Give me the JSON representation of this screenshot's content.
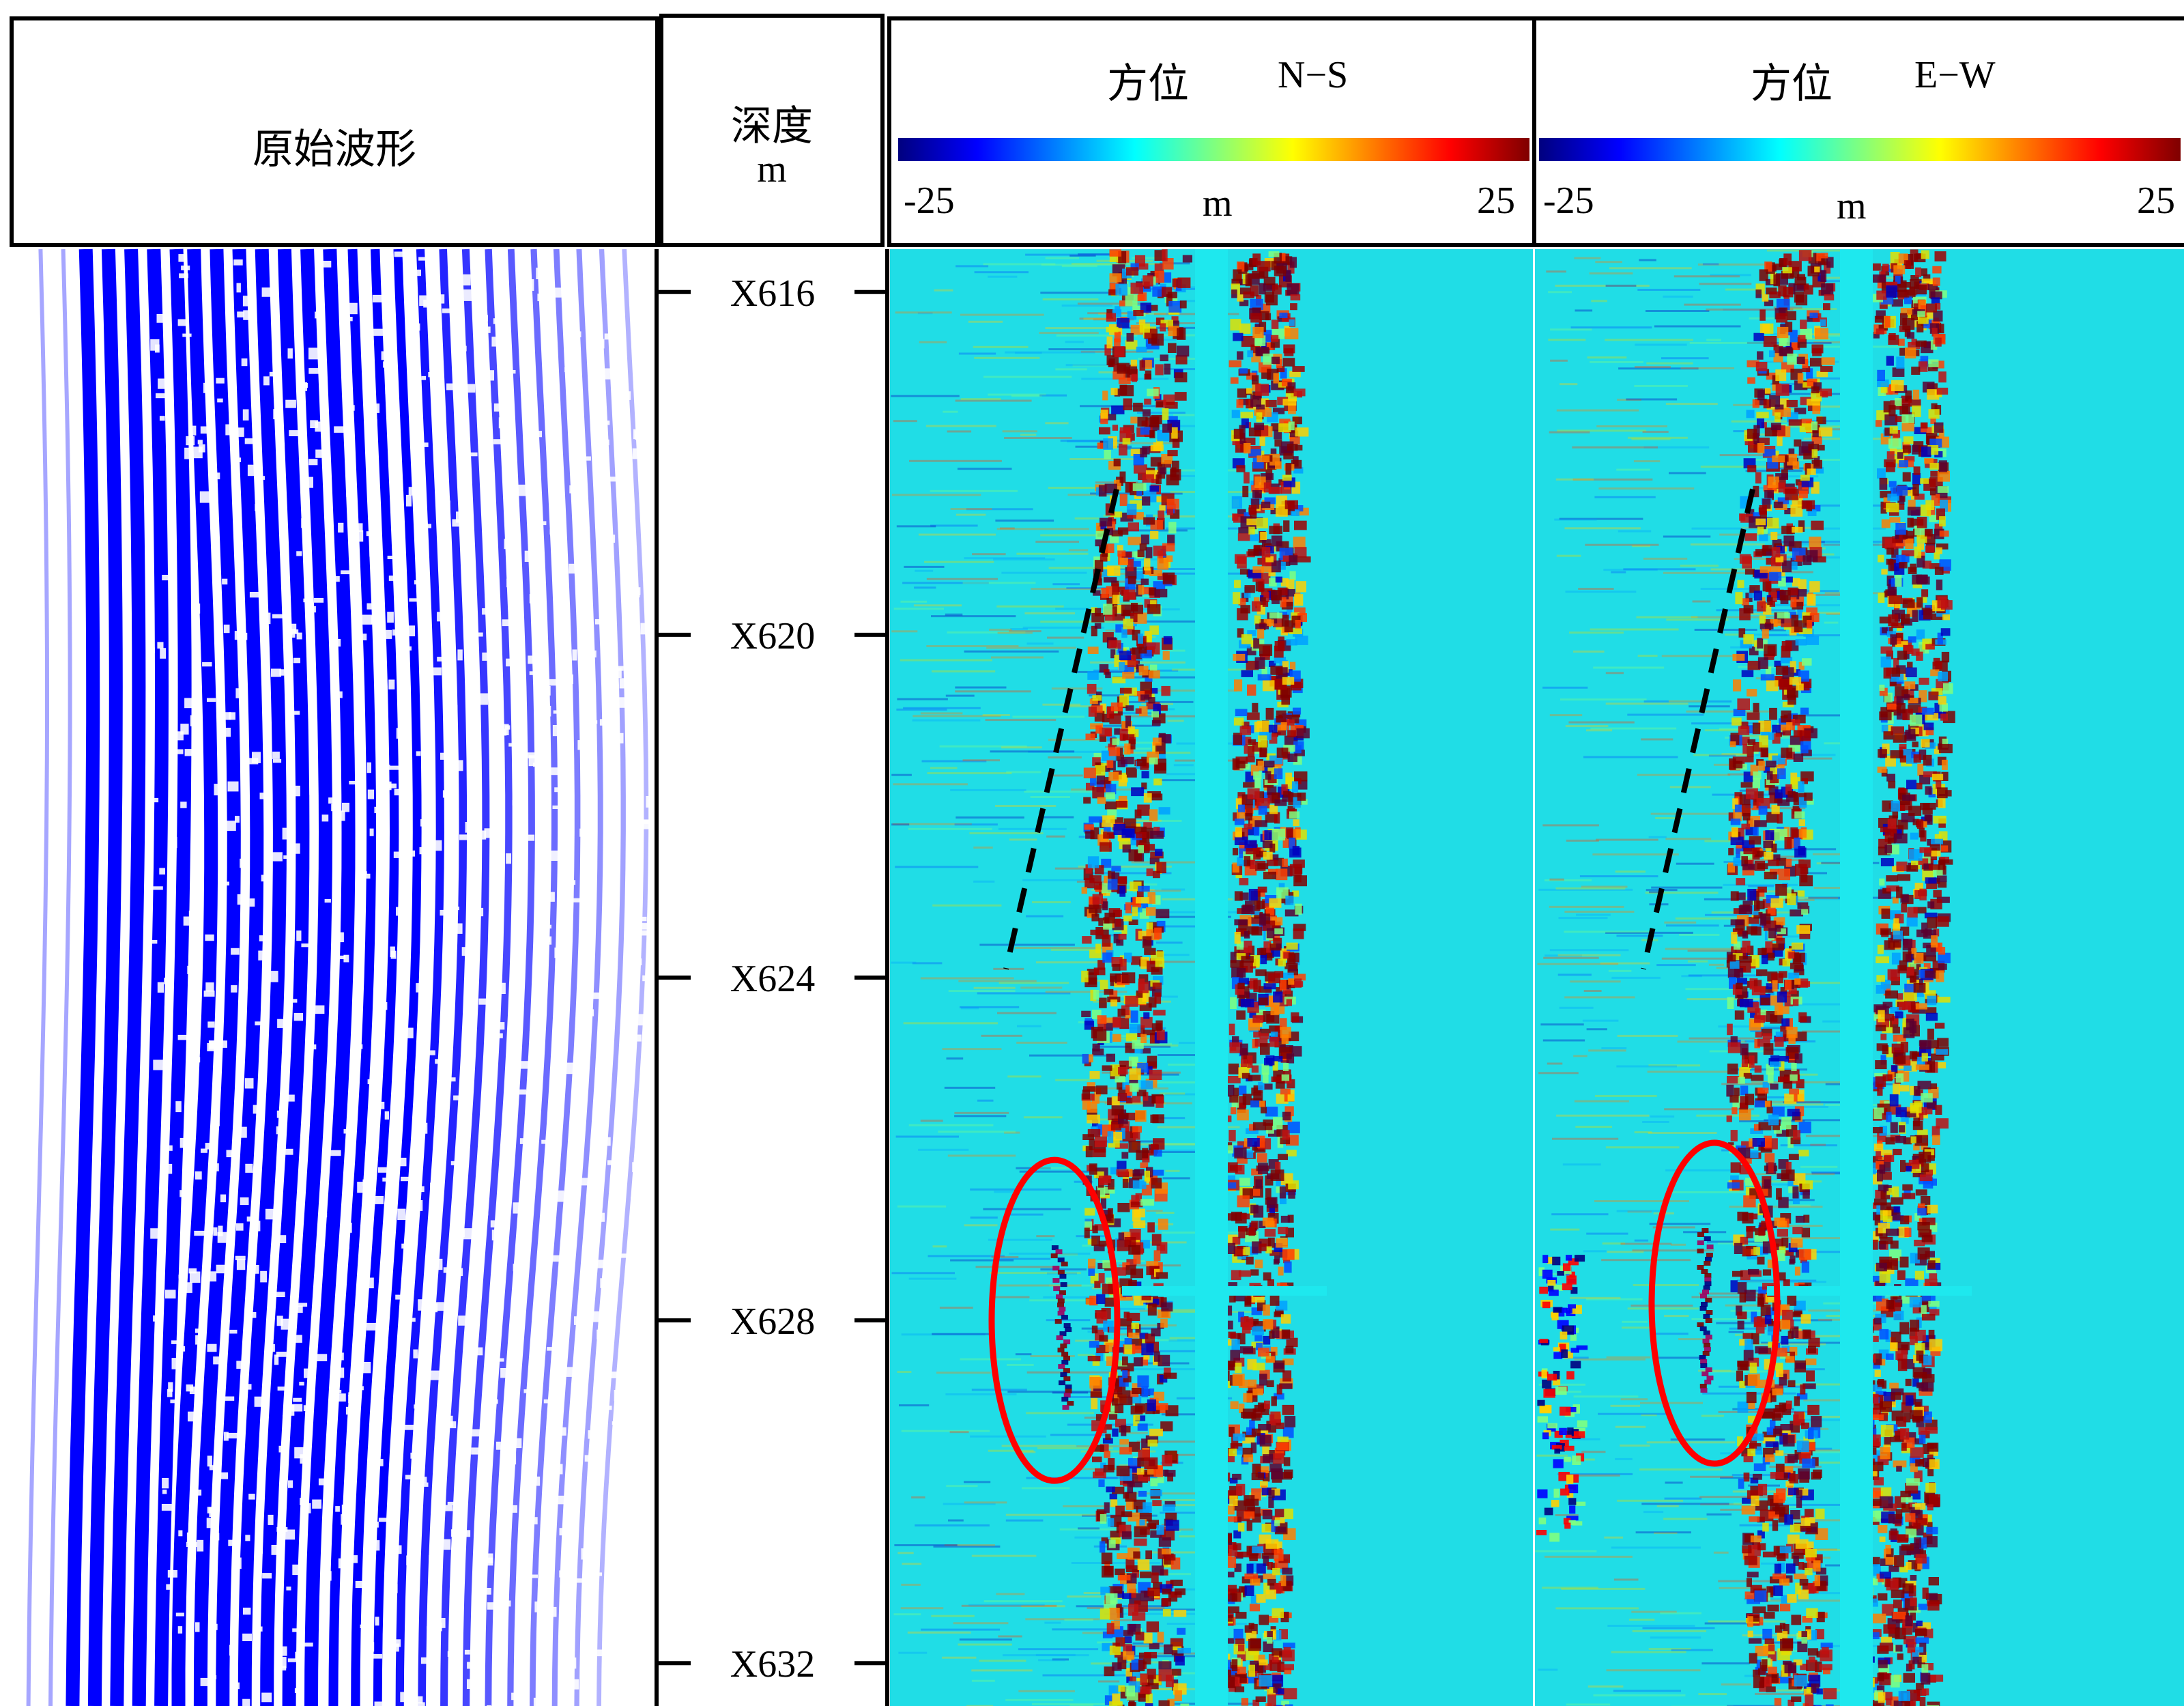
{
  "header": {
    "waveform_title": "原始波形",
    "depth_title": "深度",
    "depth_unit": "m",
    "panels": [
      {
        "label": "方位",
        "direction": "N−S",
        "min_label": "-25",
        "unit": "m",
        "max_label": "25"
      },
      {
        "label": "方位",
        "direction": "E−W",
        "min_label": "-25",
        "unit": "m",
        "max_label": "25"
      }
    ]
  },
  "colormap": [
    "#00007f",
    "#0000ff",
    "#007fff",
    "#00ffff",
    "#7fff7f",
    "#ffff00",
    "#ff7f00",
    "#ff0000",
    "#7f0000"
  ],
  "colors": {
    "waveform": "#0000ff",
    "background_field": "#20dde6",
    "annotation_ellipse": "#ff0000",
    "annotation_dash": "#000000"
  },
  "chart_data": {
    "type": "heatmap",
    "depth_axis": {
      "min": 615.5,
      "max": 632.5,
      "ticks": [
        "X616",
        "X620",
        "X624",
        "X628",
        "X632"
      ],
      "tick_values": [
        616,
        620,
        624,
        628,
        632
      ]
    },
    "colorbar": {
      "min": -25,
      "max": 25
    },
    "annotations": {
      "dashed_lines_depth": [
        [
          618.3,
          623.9
        ],
        [
          618.3,
          623.9
        ]
      ],
      "ellipse_depth_center": [
        628.0,
        627.8
      ]
    }
  }
}
